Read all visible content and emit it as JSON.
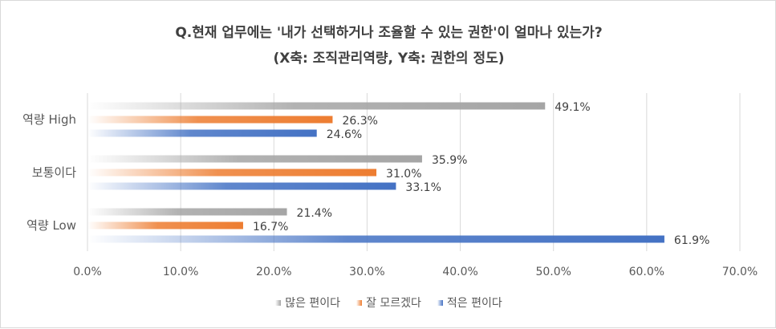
{
  "chart_data": {
    "type": "bar",
    "orientation": "horizontal",
    "title_line1": "Q.현재 업무에는 '내가 선택하거나 조율할 수 있는 권한'이 얼마나 있는가?",
    "title_line2": "(X축: 조직관리역량, Y축: 권한의 정도)",
    "categories": [
      "역량 High",
      "보통이다",
      "역량 Low"
    ],
    "series": [
      {
        "name": "많은 편이다",
        "values": [
          49.1,
          35.9,
          21.4
        ],
        "color": "#a5a5a5"
      },
      {
        "name": "잘 모르겠다",
        "values": [
          26.3,
          31.0,
          16.7
        ],
        "color": "#ed7d31"
      },
      {
        "name": "적은 편이다",
        "values": [
          24.6,
          33.1,
          61.9
        ],
        "color": "#4472c4"
      }
    ],
    "value_labels": [
      [
        "49.1%",
        "35.9%",
        "21.4%"
      ],
      [
        "26.3%",
        "31.0%",
        "16.7%"
      ],
      [
        "24.6%",
        "33.1%",
        "61.9%"
      ]
    ],
    "xlim": [
      0,
      70
    ],
    "x_ticks": [
      0,
      10,
      20,
      30,
      40,
      50,
      60,
      70
    ],
    "x_tick_labels": [
      "0.0%",
      "10.0%",
      "20.0%",
      "30.0%",
      "40.0%",
      "50.0%",
      "60.0%",
      "70.0%"
    ],
    "grid": true,
    "legend_position": "bottom"
  }
}
